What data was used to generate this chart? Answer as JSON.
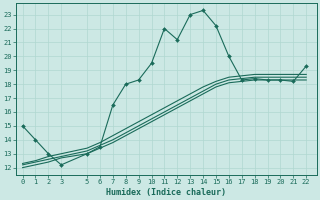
{
  "xlabel": "Humidex (Indice chaleur)",
  "xlim": [
    -0.5,
    22.8
  ],
  "ylim": [
    11.5,
    23.8
  ],
  "xticks": [
    0,
    1,
    2,
    3,
    5,
    6,
    7,
    8,
    9,
    10,
    11,
    12,
    13,
    14,
    15,
    16,
    17,
    18,
    19,
    20,
    21,
    22
  ],
  "yticks": [
    12,
    13,
    14,
    15,
    16,
    17,
    18,
    19,
    20,
    21,
    22,
    23
  ],
  "bg_color": "#cce8e4",
  "line_color": "#1a6b5a",
  "grid_color": "#b0d8d0",
  "main_line": [
    15.0,
    14.0,
    13.0,
    12.2,
    13.0,
    13.5,
    16.5,
    18.0,
    18.3,
    19.5,
    22.0,
    21.2,
    23.0,
    23.3,
    22.2,
    20.0,
    18.3,
    18.4,
    18.3,
    18.3,
    18.2,
    19.3
  ],
  "x_main": [
    0,
    1,
    2,
    3,
    5,
    6,
    7,
    8,
    9,
    10,
    11,
    12,
    13,
    14,
    15,
    16,
    17,
    18,
    19,
    20,
    21,
    22
  ],
  "smooth_lines": [
    [
      12.2,
      12.4,
      12.6,
      12.8,
      13.2,
      13.6,
      14.0,
      14.5,
      15.0,
      15.5,
      16.0,
      16.5,
      17.0,
      17.5,
      18.0,
      18.3,
      18.4,
      18.5,
      18.5,
      18.5,
      18.5,
      18.5
    ],
    [
      12.0,
      12.2,
      12.4,
      12.7,
      13.0,
      13.4,
      13.8,
      14.3,
      14.8,
      15.3,
      15.8,
      16.3,
      16.8,
      17.3,
      17.8,
      18.1,
      18.2,
      18.3,
      18.3,
      18.3,
      18.3,
      18.3
    ],
    [
      12.3,
      12.5,
      12.8,
      13.0,
      13.4,
      13.8,
      14.3,
      14.8,
      15.3,
      15.8,
      16.3,
      16.8,
      17.3,
      17.8,
      18.2,
      18.5,
      18.6,
      18.7,
      18.7,
      18.7,
      18.7,
      18.7
    ]
  ]
}
